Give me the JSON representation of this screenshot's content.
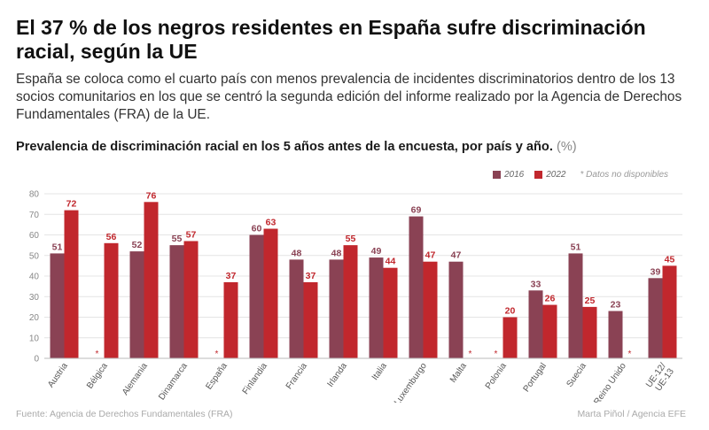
{
  "header": {
    "title": "El 37 % de los negros residentes en España sufre discriminación racial, según la UE",
    "subtitle": "España se coloca como el cuarto país con menos prevalencia de incidentes discriminatorios dentro de los 13 socios comunitarios en los que se centró la segunda edición del informe realizado por la Agencia de Derechos Fundamentales (FRA) de la UE."
  },
  "chart_header": {
    "title": "Prevalencia de discriminación racial en los 5 años antes de la encuesta, por país y año.",
    "unit": "(%)"
  },
  "legend": {
    "items": [
      {
        "label": "2016",
        "color": "#8a4254"
      },
      {
        "label": "2022",
        "color": "#c1272d"
      }
    ],
    "note": "* Datos no disponibles"
  },
  "chart_data": {
    "type": "bar",
    "categories": [
      "Austria",
      "Bélgica",
      "Alemania",
      "Dinamarca",
      "España",
      "Finlandia",
      "Francia",
      "Irlanda",
      "Italia",
      "Luxemburgo",
      "Malta",
      "Polonia",
      "Portugal",
      "Suecia",
      "Reino Unido",
      "UE-12 / UE-13"
    ],
    "series": [
      {
        "name": "2016",
        "color": "#8a4254",
        "values": [
          51,
          null,
          52,
          55,
          null,
          60,
          48,
          48,
          49,
          69,
          47,
          null,
          33,
          51,
          23,
          39
        ]
      },
      {
        "name": "2022",
        "color": "#c1272d",
        "values": [
          72,
          56,
          76,
          57,
          37,
          63,
          37,
          55,
          44,
          47,
          null,
          20,
          26,
          25,
          null,
          45
        ]
      }
    ],
    "missing_marker": "*",
    "yticks": [
      0,
      10,
      20,
      30,
      40,
      50,
      60,
      70,
      80
    ],
    "ylim": [
      0,
      80
    ],
    "grid": true
  },
  "footer": {
    "source": "Fuente: Agencia de Derechos Fundamentales (FRA)",
    "credit": "Marta Piñol / Agencia EFE"
  }
}
